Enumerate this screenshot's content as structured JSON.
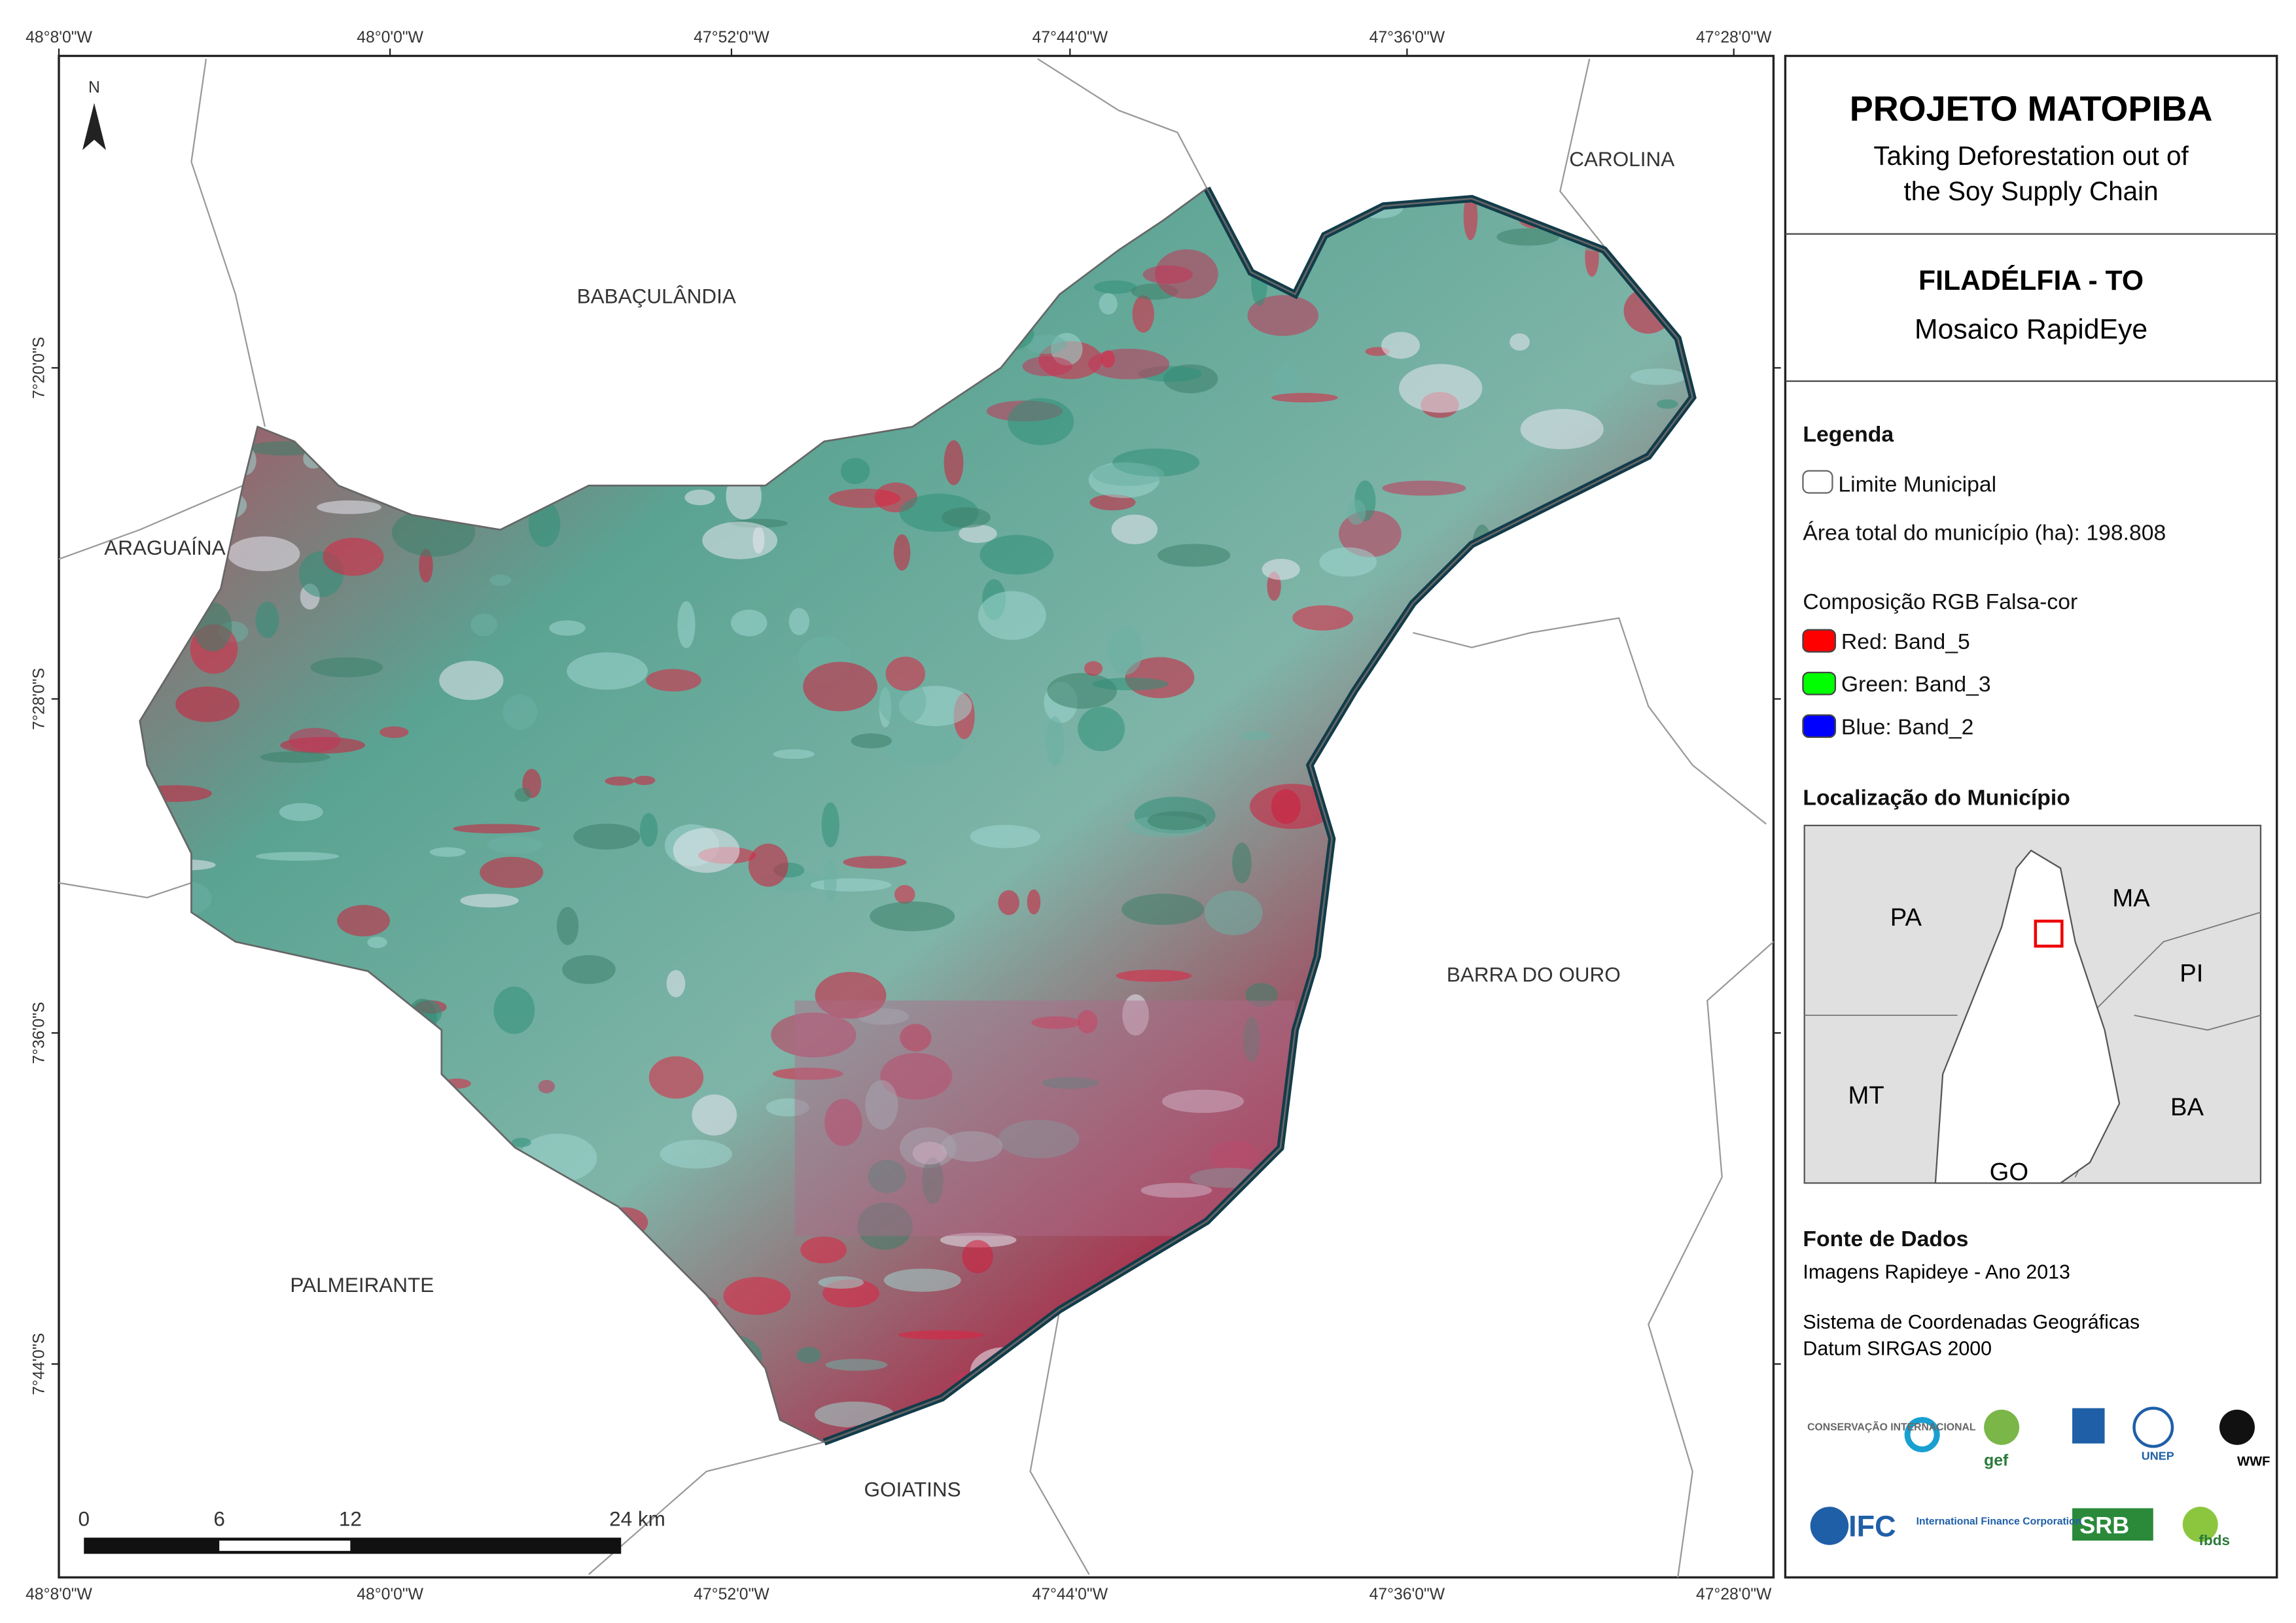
{
  "header": {
    "title": "PROJETO MATOPIBA",
    "subtitle_lines": [
      "Taking Deforestation out of",
      "the Soy Supply Chain"
    ]
  },
  "map_info": {
    "municipality": "FILADÉLFIA - TO",
    "product": "Mosaico RapidEye"
  },
  "map": {
    "top_coords": [
      "48°8'0\"W",
      "48°0'0\"W",
      "47°52'0\"W",
      "47°44'0\"W",
      "47°36'0\"W",
      "47°28'0\"W"
    ],
    "left_coords": [
      "7°20'0\"S",
      "7°28'0\"S",
      "7°36'0\"S",
      "7°44'0\"S"
    ],
    "places": [
      "CAROLINA",
      "BABAÇULÂNDIA",
      "ARAGUAÍNA",
      "BARRA DO OURO",
      "PALMEIRANTE",
      "GOIATINS"
    ],
    "north": "N",
    "scale_labels": [
      "0",
      "6",
      "12",
      "24 km"
    ]
  },
  "legend": {
    "title": "Legenda",
    "boundary": "Limite Municipal",
    "area": "Área total do município (ha): 198.808",
    "composition": "Composição RGB Falsa-cor",
    "bands": [
      {
        "label": "Red:    Band_5",
        "color": "#ff0000"
      },
      {
        "label": "Green: Band_3",
        "color": "#00ff00"
      },
      {
        "label": "Blue:   Band_2",
        "color": "#0000ff"
      }
    ]
  },
  "location": {
    "title": "Localização do Município",
    "labels": [
      "PA",
      "MA",
      "PI",
      "MT",
      "BA",
      "GO"
    ]
  },
  "sources": {
    "title": "Fonte de Dados",
    "lines": [
      "Imagens Rapideye - Ano 2013",
      "Sistema de Coordenadas Geográficas",
      "Datum SIRGAS 2000"
    ]
  },
  "logos": [
    "CONSERVAÇÃO INTERNACIONAL",
    "gef",
    "UNEP",
    "WWF",
    "IFC",
    "International Finance Corporation",
    "SRB",
    "fbds"
  ]
}
